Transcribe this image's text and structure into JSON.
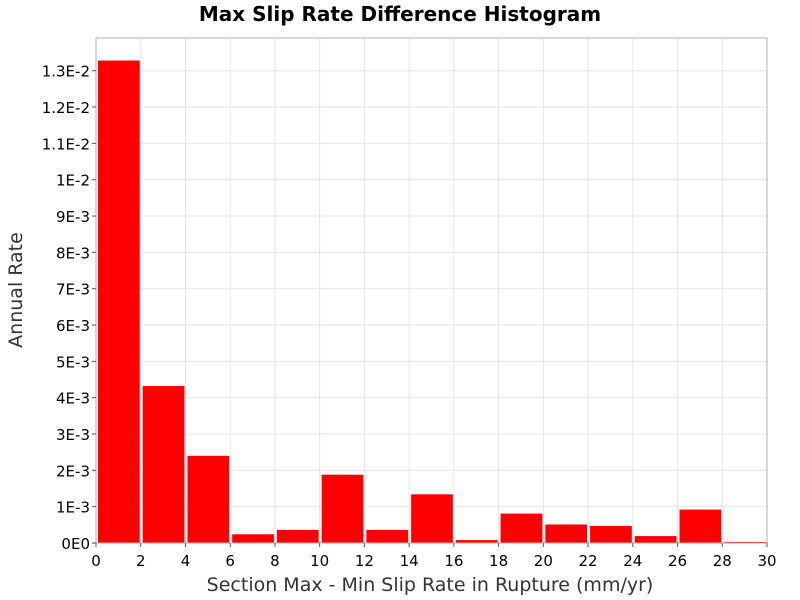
{
  "chart_data": {
    "type": "bar",
    "title": "Max Slip Rate Difference Histogram",
    "xlabel": "Section Max - Min Slip Rate in Rupture (mm/yr)",
    "ylabel": "Annual Rate",
    "xlim": [
      0,
      30
    ],
    "ylim": [
      0,
      0.0139
    ],
    "bin_width": 2,
    "x": [
      1,
      3,
      5,
      7,
      9,
      11,
      13,
      15,
      17,
      19,
      21,
      23,
      25,
      27,
      29
    ],
    "values": [
      0.01328,
      0.00432,
      0.0024,
      0.00024,
      0.00036,
      0.00188,
      0.00036,
      0.00134,
      8e-05,
      0.00081,
      0.00051,
      0.00047,
      0.00019,
      0.00092,
      3e-05
    ],
    "x_ticks": [
      {
        "value": 0,
        "label": "0"
      },
      {
        "value": 2,
        "label": "2"
      },
      {
        "value": 4,
        "label": "4"
      },
      {
        "value": 6,
        "label": "6"
      },
      {
        "value": 8,
        "label": "8"
      },
      {
        "value": 10,
        "label": "10"
      },
      {
        "value": 12,
        "label": "12"
      },
      {
        "value": 14,
        "label": "14"
      },
      {
        "value": 16,
        "label": "16"
      },
      {
        "value": 18,
        "label": "18"
      },
      {
        "value": 20,
        "label": "20"
      },
      {
        "value": 22,
        "label": "22"
      },
      {
        "value": 24,
        "label": "24"
      },
      {
        "value": 26,
        "label": "26"
      },
      {
        "value": 28,
        "label": "28"
      },
      {
        "value": 30,
        "label": "30"
      }
    ],
    "y_ticks": [
      {
        "value": 0,
        "label": "0E0"
      },
      {
        "value": 0.001,
        "label": "1E-3"
      },
      {
        "value": 0.002,
        "label": "2E-3"
      },
      {
        "value": 0.003,
        "label": "3E-3"
      },
      {
        "value": 0.004,
        "label": "4E-3"
      },
      {
        "value": 0.005,
        "label": "5E-3"
      },
      {
        "value": 0.006,
        "label": "6E-3"
      },
      {
        "value": 0.007,
        "label": "7E-3"
      },
      {
        "value": 0.008,
        "label": "8E-3"
      },
      {
        "value": 0.009,
        "label": "9E-3"
      },
      {
        "value": 0.01,
        "label": "1E-2"
      },
      {
        "value": 0.011,
        "label": "1.1E-2"
      },
      {
        "value": 0.012,
        "label": "1.2E-2"
      },
      {
        "value": 0.013,
        "label": "1.3E-2"
      }
    ],
    "grid": true,
    "colors": {
      "bar": "#ff0000",
      "grid": "#e6e6e6",
      "plot_border": "#b0b0b0",
      "background": "#ffffff"
    }
  }
}
